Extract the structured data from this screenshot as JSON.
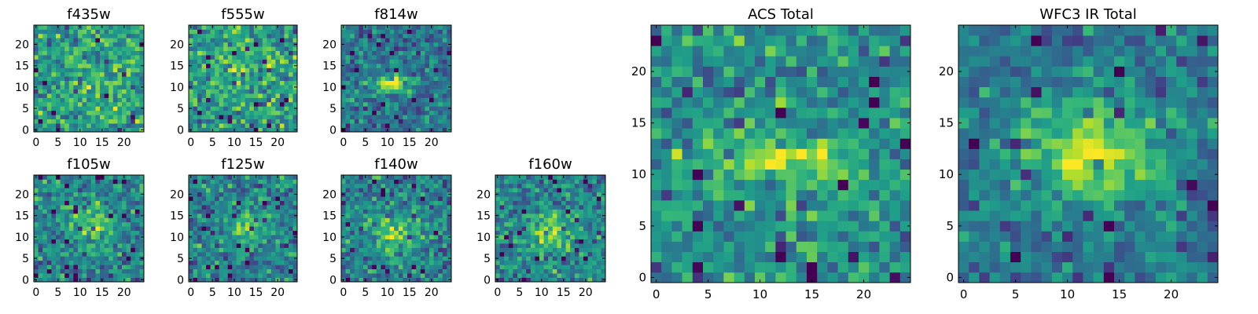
{
  "chart_data": [
    {
      "type": "heatmap",
      "title": "f435w",
      "colormap": "viridis",
      "grid": false,
      "xlim": [
        -0.5,
        24.5
      ],
      "ylim": [
        -0.5,
        24.5
      ],
      "xticks": [
        0,
        5,
        10,
        15,
        20
      ],
      "yticks": [
        0,
        5,
        10,
        15,
        20
      ],
      "xtick_labels": [
        "0",
        "5",
        "10",
        "15",
        "20"
      ],
      "ytick_labels": [
        "0",
        "5",
        "10",
        "15",
        "20"
      ],
      "grid_size": [
        25,
        25
      ],
      "source_peak": [
        15,
        11
      ],
      "source_width": [
        5,
        4
      ],
      "source_strength": 0.1,
      "noise_level": 0.55,
      "noise_seed": 11,
      "base_level": 0.55
    },
    {
      "type": "heatmap",
      "title": "f555w",
      "colormap": "viridis",
      "grid": false,
      "xlim": [
        -0.5,
        24.5
      ],
      "ylim": [
        -0.5,
        24.5
      ],
      "xticks": [
        0,
        5,
        10,
        15,
        20
      ],
      "yticks": [
        0,
        5,
        10,
        15,
        20
      ],
      "xtick_labels": [
        "0",
        "5",
        "10",
        "15",
        "20"
      ],
      "ytick_labels": [
        "0",
        "5",
        "10",
        "15",
        "20"
      ],
      "grid_size": [
        25,
        25
      ],
      "source_peak": [
        12,
        14
      ],
      "source_width": [
        5,
        4
      ],
      "source_strength": 0.12,
      "noise_level": 0.55,
      "noise_seed": 23,
      "base_level": 0.55
    },
    {
      "type": "heatmap",
      "title": "f814w",
      "colormap": "viridis",
      "grid": false,
      "xlim": [
        -0.5,
        24.5
      ],
      "ylim": [
        -0.5,
        24.5
      ],
      "xticks": [
        0,
        5,
        10,
        15,
        20
      ],
      "yticks": [
        0,
        5,
        10,
        15,
        20
      ],
      "xtick_labels": [
        "0",
        "5",
        "10",
        "15",
        "20"
      ],
      "ytick_labels": [
        "0",
        "5",
        "10",
        "15",
        "20"
      ],
      "grid_size": [
        25,
        25
      ],
      "source_peak": [
        11,
        11
      ],
      "source_width": [
        3.2,
        1.2
      ],
      "source_strength": 0.6,
      "noise_level": 0.45,
      "noise_seed": 37,
      "base_level": 0.4
    },
    {
      "type": "heatmap",
      "title": "f105w",
      "colormap": "viridis",
      "grid": false,
      "xlim": [
        -0.5,
        24.5
      ],
      "ylim": [
        -0.5,
        24.5
      ],
      "xticks": [
        0,
        5,
        10,
        15,
        20
      ],
      "yticks": [
        0,
        5,
        10,
        15,
        20
      ],
      "xtick_labels": [
        "0",
        "5",
        "10",
        "15",
        "20"
      ],
      "ytick_labels": [
        "0",
        "5",
        "10",
        "15",
        "20"
      ],
      "grid_size": [
        25,
        25
      ],
      "source_peak": [
        13,
        13
      ],
      "source_width": [
        3.5,
        3
      ],
      "source_strength": 0.3,
      "noise_level": 0.5,
      "noise_seed": 51,
      "base_level": 0.45
    },
    {
      "type": "heatmap",
      "title": "f125w",
      "colormap": "viridis",
      "grid": false,
      "xlim": [
        -0.5,
        24.5
      ],
      "ylim": [
        -0.5,
        24.5
      ],
      "xticks": [
        0,
        5,
        10,
        15,
        20
      ],
      "yticks": [
        0,
        5,
        10,
        15,
        20
      ],
      "xtick_labels": [
        "0",
        "5",
        "10",
        "15",
        "20"
      ],
      "ytick_labels": [
        "0",
        "5",
        "10",
        "15",
        "20"
      ],
      "grid_size": [
        25,
        25
      ],
      "source_peak": [
        13,
        12
      ],
      "source_width": [
        3.5,
        3
      ],
      "source_strength": 0.3,
      "noise_level": 0.5,
      "noise_seed": 67,
      "base_level": 0.45
    },
    {
      "type": "heatmap",
      "title": "f140w",
      "colormap": "viridis",
      "grid": false,
      "xlim": [
        -0.5,
        24.5
      ],
      "ylim": [
        -0.5,
        24.5
      ],
      "xticks": [
        0,
        5,
        10,
        15,
        20
      ],
      "yticks": [
        0,
        5,
        10,
        15,
        20
      ],
      "xtick_labels": [
        "0",
        "5",
        "10",
        "15",
        "20"
      ],
      "ytick_labels": [
        "0",
        "5",
        "10",
        "15",
        "20"
      ],
      "grid_size": [
        25,
        25
      ],
      "source_peak": [
        12,
        11
      ],
      "source_width": [
        3.5,
        3
      ],
      "source_strength": 0.3,
      "noise_level": 0.5,
      "noise_seed": 79,
      "base_level": 0.45
    },
    {
      "type": "heatmap",
      "title": "f160w",
      "colormap": "viridis",
      "grid": false,
      "xlim": [
        -0.5,
        24.5
      ],
      "ylim": [
        -0.5,
        24.5
      ],
      "xticks": [
        0,
        5,
        10,
        15,
        20
      ],
      "yticks": [
        0,
        5,
        10,
        15,
        20
      ],
      "xtick_labels": [
        "0",
        "5",
        "10",
        "15",
        "20"
      ],
      "ytick_labels": [
        "0",
        "5",
        "10",
        "15",
        "20"
      ],
      "grid_size": [
        25,
        25
      ],
      "source_peak": [
        12,
        11
      ],
      "source_width": [
        3.5,
        3
      ],
      "source_strength": 0.35,
      "noise_level": 0.5,
      "noise_seed": 97,
      "base_level": 0.45
    },
    {
      "type": "heatmap",
      "title": "ACS Total",
      "colormap": "viridis",
      "grid": false,
      "xlim": [
        -0.5,
        24.5
      ],
      "ylim": [
        -0.5,
        24.5
      ],
      "xticks": [
        0,
        5,
        10,
        15,
        20
      ],
      "yticks": [
        0,
        5,
        10,
        15,
        20
      ],
      "xtick_labels": [
        "0",
        "5",
        "10",
        "15",
        "20"
      ],
      "ytick_labels": [
        "0",
        "5",
        "10",
        "15",
        "20"
      ],
      "grid_size": [
        25,
        25
      ],
      "source_peak": [
        12,
        11.5
      ],
      "source_width": [
        5,
        1.8
      ],
      "source_strength": 0.35,
      "noise_level": 0.5,
      "noise_seed": 113,
      "base_level": 0.5
    },
    {
      "type": "heatmap",
      "title": "WFC3 IR Total",
      "colormap": "viridis",
      "grid": false,
      "xlim": [
        -0.5,
        24.5
      ],
      "ylim": [
        -0.5,
        24.5
      ],
      "xticks": [
        0,
        5,
        10,
        15,
        20
      ],
      "yticks": [
        0,
        5,
        10,
        15,
        20
      ],
      "xtick_labels": [
        "0",
        "5",
        "10",
        "15",
        "20"
      ],
      "ytick_labels": [
        "0",
        "5",
        "10",
        "15",
        "20"
      ],
      "grid_size": [
        25,
        25
      ],
      "source_peak": [
        12,
        12
      ],
      "source_width": [
        5,
        3.5
      ],
      "source_strength": 0.45,
      "noise_level": 0.4,
      "noise_seed": 131,
      "base_level": 0.4
    }
  ]
}
